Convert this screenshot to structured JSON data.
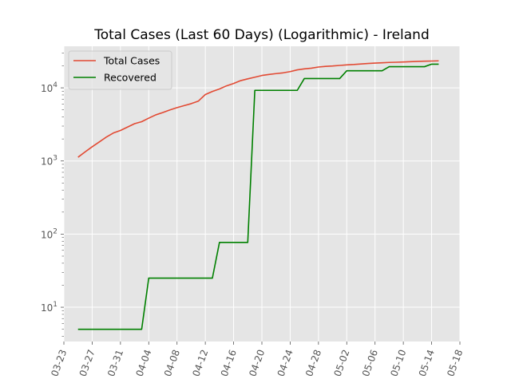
{
  "chart_data": {
    "type": "line",
    "title": "Total Cases (Last 60 Days) (Logarithmic) - Ireland",
    "xlabel": "",
    "ylabel": "",
    "yscale": "log",
    "ylim": [
      3.4,
      37000
    ],
    "xlim": [
      "2020-03-23",
      "2020-05-18"
    ],
    "grid": true,
    "legend_position": "top-left",
    "x_ticks": [
      "03-23",
      "03-27",
      "03-31",
      "04-04",
      "04-08",
      "04-12",
      "04-16",
      "04-20",
      "04-24",
      "04-28",
      "05-02",
      "05-06",
      "05-10",
      "05-14",
      "05-18"
    ],
    "y_ticks": [
      {
        "value": 10,
        "label": "10^1"
      },
      {
        "value": 100,
        "label": "10^2"
      },
      {
        "value": 1000,
        "label": "10^3"
      },
      {
        "value": 10000,
        "label": "10^4"
      }
    ],
    "series": [
      {
        "name": "Total Cases",
        "color": "#e24a33",
        "x": [
          "2020-03-25",
          "2020-03-26",
          "2020-03-27",
          "2020-03-28",
          "2020-03-29",
          "2020-03-30",
          "2020-03-31",
          "2020-04-01",
          "2020-04-02",
          "2020-04-03",
          "2020-04-04",
          "2020-04-05",
          "2020-04-06",
          "2020-04-07",
          "2020-04-08",
          "2020-04-09",
          "2020-04-10",
          "2020-04-11",
          "2020-04-12",
          "2020-04-13",
          "2020-04-14",
          "2020-04-15",
          "2020-04-16",
          "2020-04-17",
          "2020-04-18",
          "2020-04-19",
          "2020-04-20",
          "2020-04-21",
          "2020-04-22",
          "2020-04-23",
          "2020-04-24",
          "2020-04-25",
          "2020-04-26",
          "2020-04-27",
          "2020-04-28",
          "2020-04-29",
          "2020-04-30",
          "2020-05-01",
          "2020-05-02",
          "2020-05-03",
          "2020-05-04",
          "2020-05-05",
          "2020-05-06",
          "2020-05-07",
          "2020-05-08",
          "2020-05-09",
          "2020-05-10",
          "2020-05-11",
          "2020-05-12",
          "2020-05-13",
          "2020-05-14",
          "2020-05-15"
        ],
        "values": [
          1125,
          1329,
          1564,
          1819,
          2121,
          2415,
          2615,
          2910,
          3235,
          3447,
          3849,
          4273,
          4604,
          4994,
          5364,
          5709,
          6074,
          6574,
          8089,
          8928,
          9655,
          10647,
          11479,
          12547,
          13271,
          13980,
          14758,
          15251,
          15652,
          16040,
          16671,
          17607,
          18184,
          18561,
          19262,
          19648,
          19877,
          20253,
          20612,
          20833,
          21176,
          21506,
          21772,
          21983,
          22248,
          22385,
          22541,
          22760,
          22996,
          23135,
          23242,
          23401
        ]
      },
      {
        "name": "Recovered",
        "color": "#008000",
        "x": [
          "2020-03-25",
          "2020-04-03",
          "2020-04-04",
          "2020-04-13",
          "2020-04-14",
          "2020-04-18",
          "2020-04-19",
          "2020-04-25",
          "2020-04-26",
          "2020-05-01",
          "2020-05-02",
          "2020-05-07",
          "2020-05-08",
          "2020-05-13",
          "2020-05-14",
          "2020-05-15"
        ],
        "values": [
          5,
          5,
          25,
          25,
          77,
          77,
          9233,
          9233,
          13386,
          13386,
          17110,
          17110,
          19470,
          19470,
          21060,
          21060
        ]
      }
    ]
  }
}
